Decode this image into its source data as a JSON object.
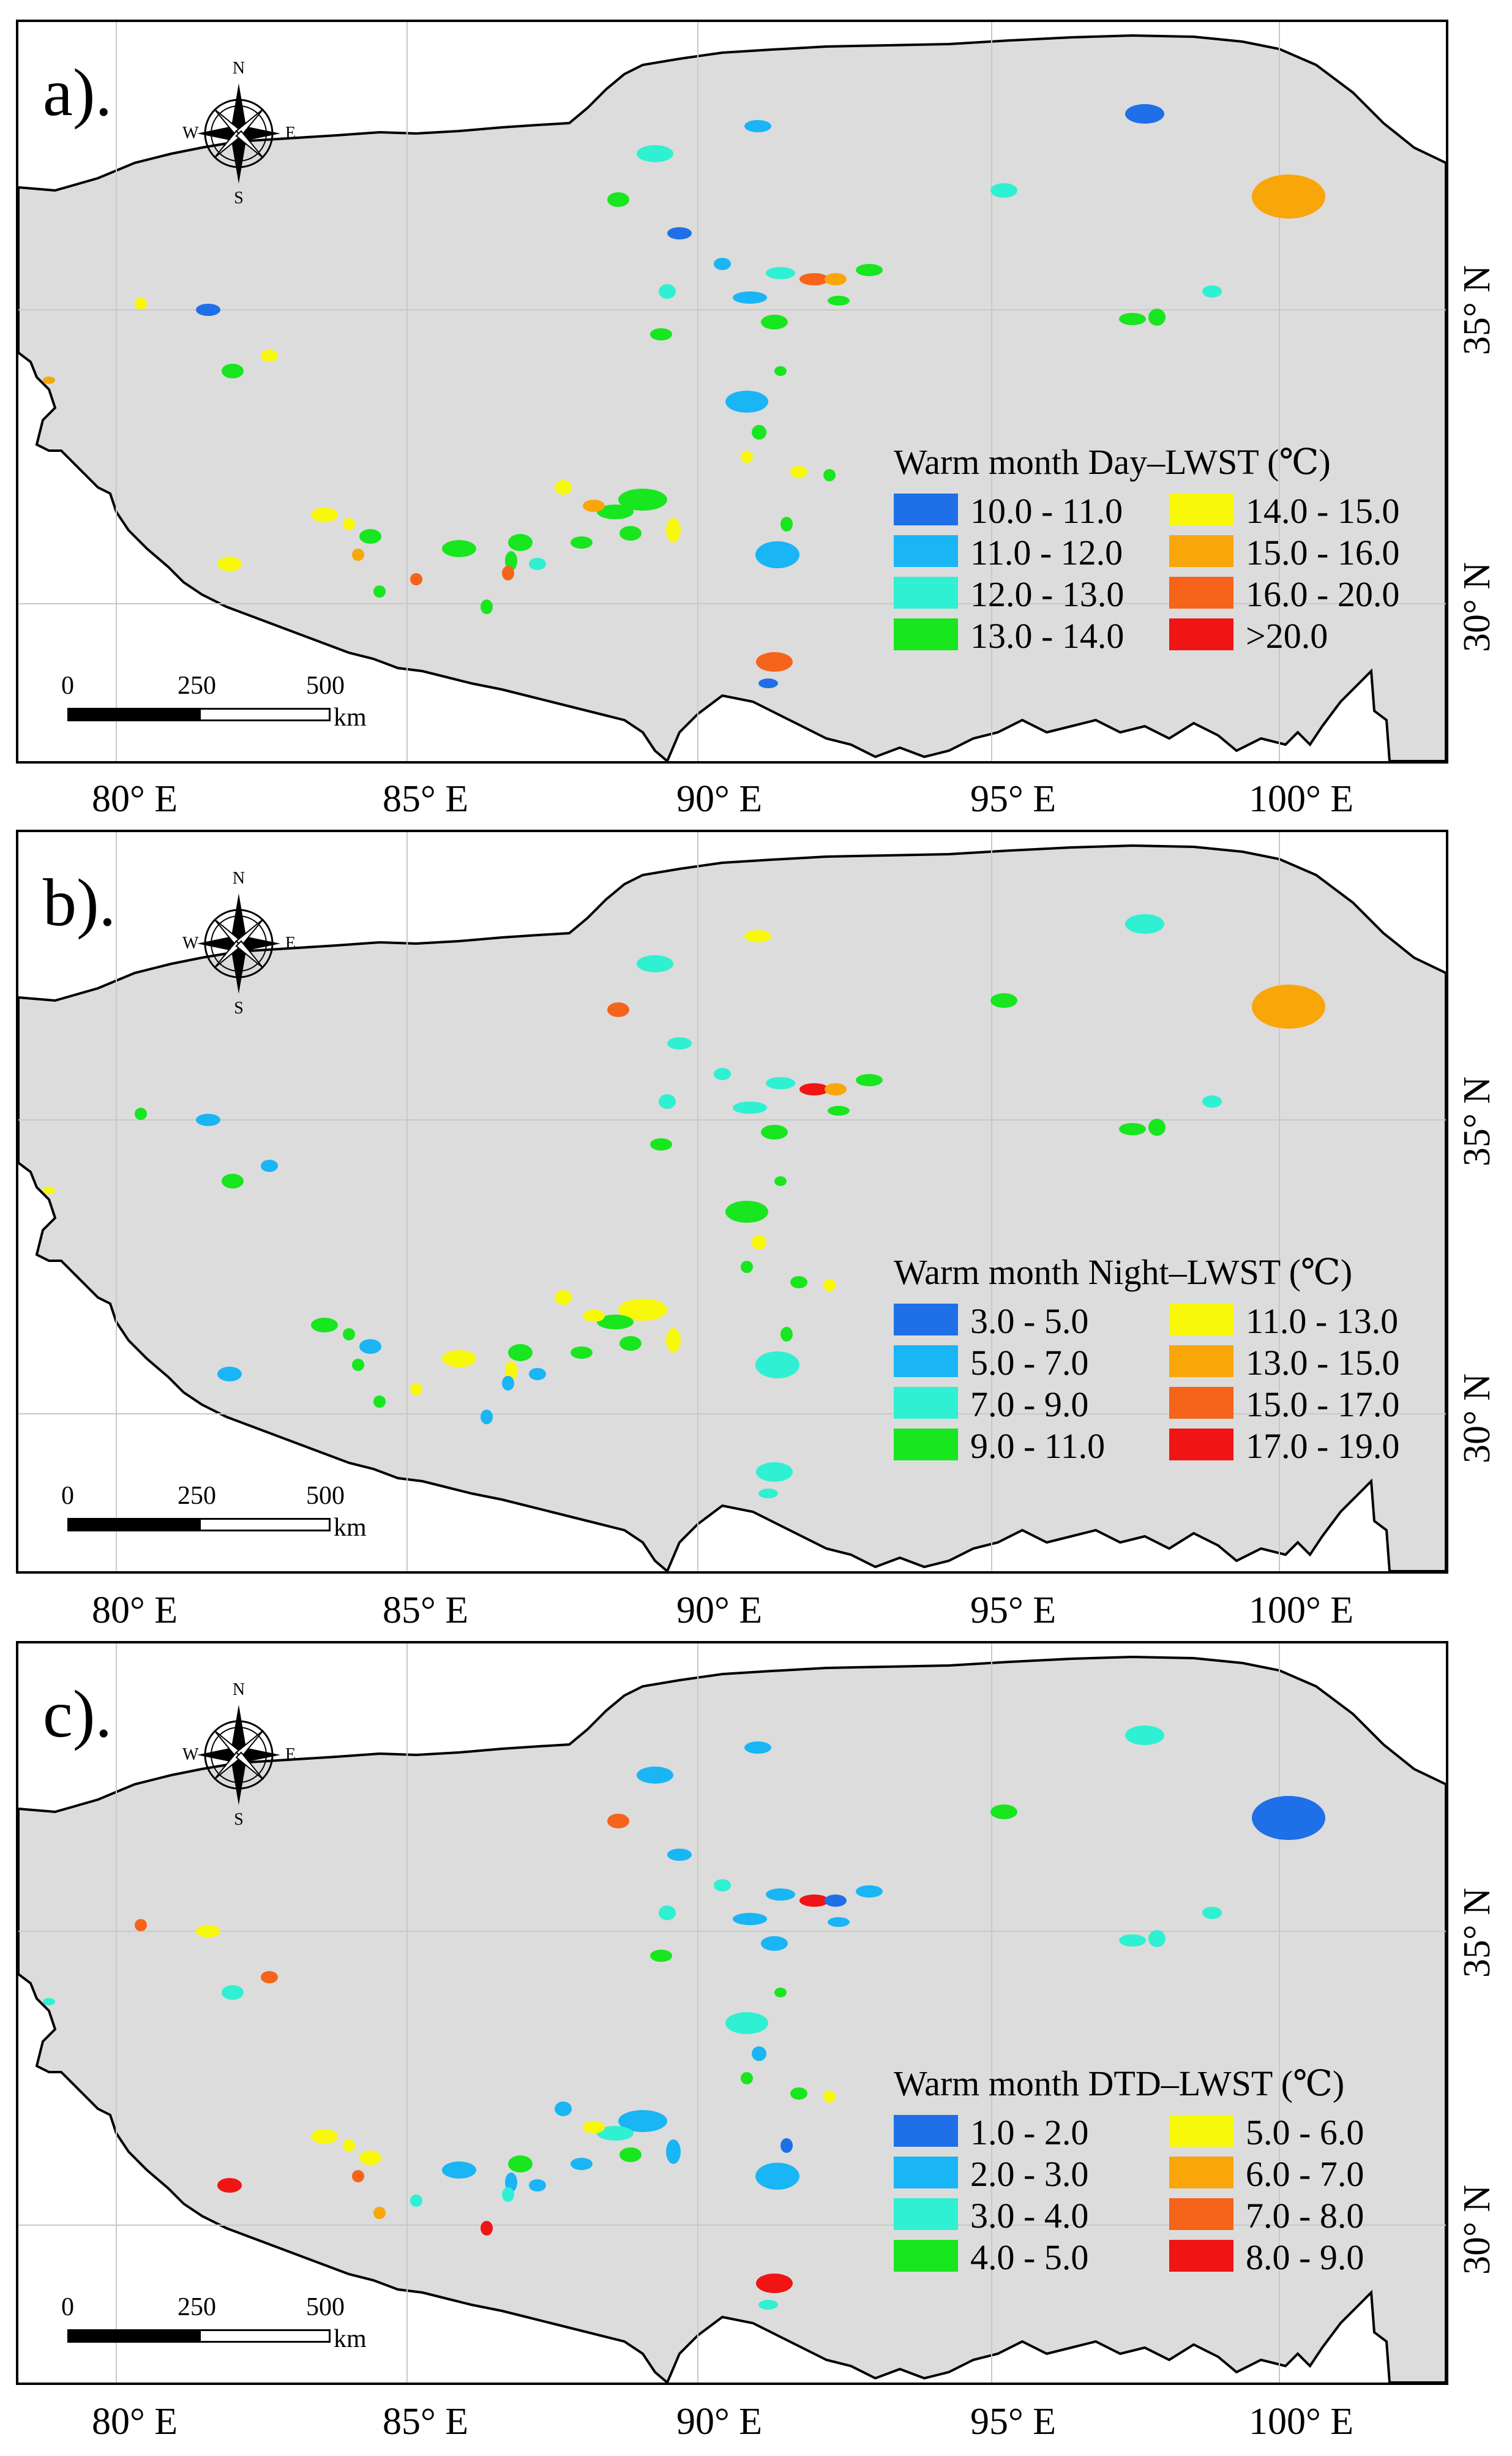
{
  "longitude_labels": [
    "80° E",
    "85° E",
    "90° E",
    "95° E",
    "100° E"
  ],
  "latitude_labels": [
    "35° N",
    "30° N"
  ],
  "compass": {
    "n": "N",
    "s": "S",
    "e": "E",
    "w": "W"
  },
  "scale": {
    "t0": "0",
    "t1": "250",
    "t2": "500",
    "unit": "km"
  },
  "colors": {
    "land": "#dcdcdc",
    "classes": [
      "#1f6fe8",
      "#19b5f5",
      "#2ff0d2",
      "#18e61e",
      "#f7f70a",
      "#f8a60a",
      "#f5641a",
      "#f01414"
    ]
  },
  "panels": [
    {
      "label": "a).",
      "legend_title": "Warm month Day–LWST (℃)",
      "classes": [
        "10.0 - 11.0",
        "11.0 - 12.0",
        "12.0 - 13.0",
        "13.0 - 14.0",
        "14.0 - 15.0",
        "15.0 - 16.0",
        "16.0 - 20.0",
        ">20.0"
      ]
    },
    {
      "label": "b).",
      "legend_title": "Warm month Night–LWST (℃)",
      "classes": [
        "3.0 - 5.0",
        "5.0 - 7.0",
        "7.0 - 9.0",
        "9.0 - 11.0",
        "11.0 - 13.0",
        "13.0 - 15.0",
        "15.0 - 17.0",
        "17.0 - 19.0"
      ]
    },
    {
      "label": "c).",
      "legend_title": "Warm month DTD–LWST (℃)",
      "classes": [
        "1.0 - 2.0",
        "2.0 - 3.0",
        "3.0 - 4.0",
        "4.0 - 5.0",
        "5.0 - 6.0",
        "6.0 - 7.0",
        "7.0 - 8.0",
        "8.0 - 9.0"
      ]
    }
  ]
}
